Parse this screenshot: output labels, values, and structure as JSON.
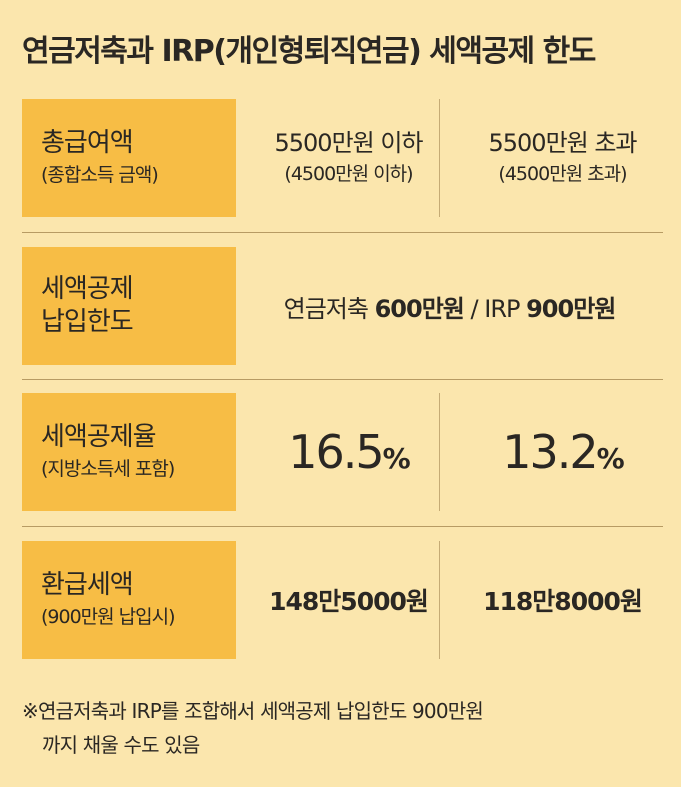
{
  "title": "연금저축과 IRP(개인형퇴직연금) 세액공제 한도",
  "rows": {
    "income": {
      "label": "총급여액",
      "sublabel": "(종합소득 금액)",
      "col1_main": "5500만원 이하",
      "col1_sub": "(4500만원 이하)",
      "col2_main": "5500만원 초과",
      "col2_sub": "(4500만원 초과)"
    },
    "limit": {
      "label_line1": "세액공제",
      "label_line2": "납입한도",
      "pension_label": "연금저축",
      "pension_value": "600만원",
      "separator": "/",
      "irp_label": "IRP",
      "irp_value": "900만원"
    },
    "rate": {
      "label": "세액공제율",
      "sublabel": "(지방소득세 포함)",
      "col1_value": "16.5",
      "col1_unit": "%",
      "col2_value": "13.2",
      "col2_unit": "%"
    },
    "refund": {
      "label": "환급세액",
      "sublabel": "(900만원 납입시)",
      "col1_value": "148만5000원",
      "col2_value": "118만8000원"
    }
  },
  "note": {
    "line1": "※연금저축과 IRP를 조합해서 세액공제 납입한도 900만원",
    "line2": "까지 채울 수도 있음"
  },
  "colors": {
    "background": "#fbe6ad",
    "label_cell": "#f7bd45",
    "divider": "#b79b63",
    "text": "#2a2723"
  }
}
